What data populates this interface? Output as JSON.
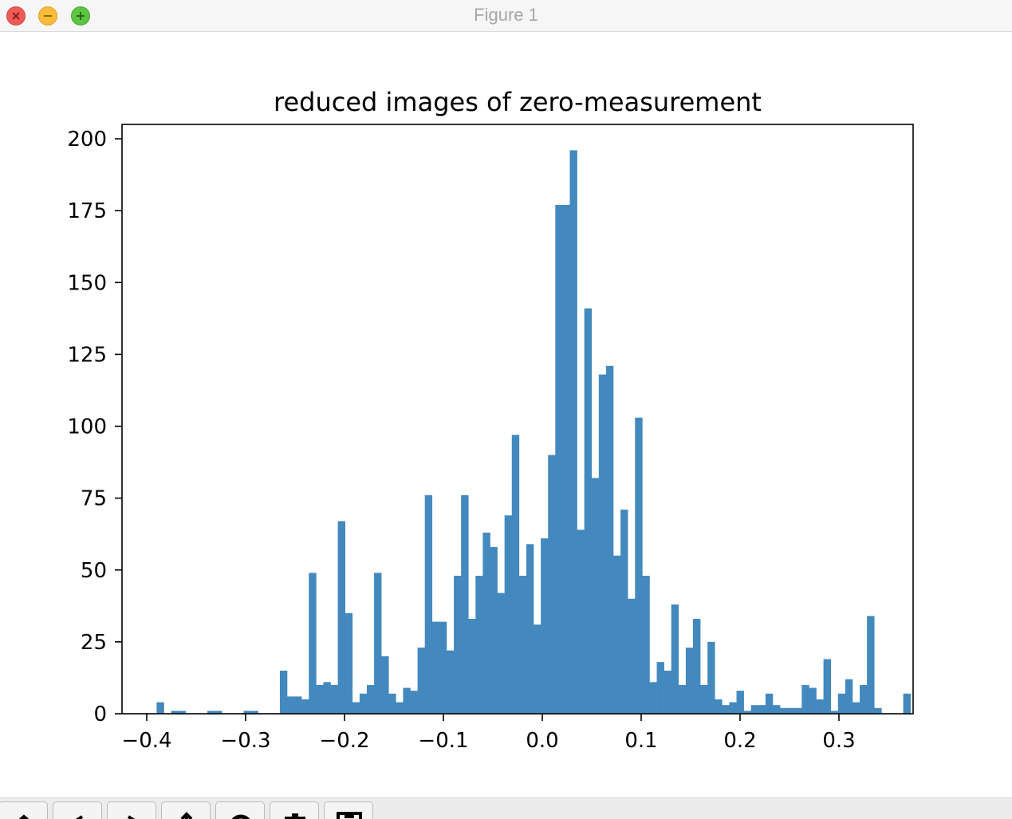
{
  "window": {
    "title": "Figure 1",
    "buttons": [
      "close",
      "minimize",
      "zoom"
    ]
  },
  "toolbar": {
    "icons": [
      "home-icon",
      "back-icon",
      "forward-icon",
      "pan-icon",
      "zoom-icon",
      "configure-subplots-icon",
      "save-icon"
    ]
  },
  "chart_data": {
    "type": "bar",
    "title": "reduced images of zero-measurement",
    "xlabel": "",
    "ylabel": "",
    "xlim": [
      -0.425,
      0.375
    ],
    "ylim": [
      0,
      205
    ],
    "x_ticks": [
      -0.4,
      -0.3,
      -0.2,
      -0.1,
      0.0,
      0.1,
      0.2,
      0.3
    ],
    "x_tick_labels": [
      "−0.4",
      "−0.3",
      "−0.2",
      "−0.1",
      "0.0",
      "0.1",
      "0.2",
      "0.3"
    ],
    "y_ticks": [
      0,
      25,
      50,
      75,
      100,
      125,
      150,
      175,
      200
    ],
    "y_tick_labels": [
      "0",
      "25",
      "50",
      "75",
      "100",
      "125",
      "150",
      "175",
      "200"
    ],
    "bin_start": -0.39,
    "bin_width": 0.00733,
    "values": [
      4,
      0,
      1,
      1,
      0,
      0,
      0,
      1,
      1,
      0,
      0,
      0,
      1,
      1,
      0,
      0,
      0,
      15,
      6,
      6,
      5,
      49,
      10,
      11,
      10,
      67,
      35,
      4,
      7,
      10,
      49,
      20,
      7,
      4,
      9,
      8,
      23,
      76,
      32,
      32,
      22,
      48,
      76,
      33,
      48,
      63,
      58,
      42,
      69,
      97,
      48,
      59,
      31,
      61,
      90,
      177,
      177,
      196,
      64,
      141,
      82,
      118,
      121,
      55,
      71,
      40,
      103,
      48,
      11,
      18,
      15,
      38,
      10,
      23,
      33,
      10,
      25,
      5,
      3,
      4,
      8,
      1,
      3,
      3,
      7,
      3,
      2,
      2,
      2,
      10,
      9,
      5,
      19,
      1,
      7,
      12,
      4,
      10,
      34,
      2,
      0,
      0,
      0,
      7
    ],
    "bar_color": "#4389be",
    "grid": false,
    "legend": "none"
  }
}
